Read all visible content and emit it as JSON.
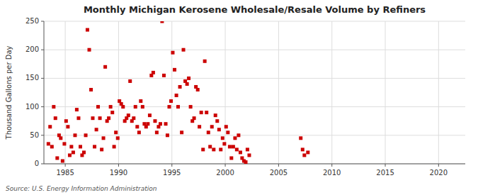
{
  "chart_data": {
    "type": "scatter",
    "title": "Monthly Michigan Kerosene Wholesale/Resale Volume by Refiners",
    "ylabel": "Thousand Gallons per Day",
    "annotations": [
      "Source: U.S. Energy Information Administration"
    ],
    "color": "#cc0000",
    "marker": "square",
    "grid": true,
    "xlim": [
      1983.0,
      2022.5
    ],
    "ylim": [
      0,
      250
    ],
    "xticks": [
      1985,
      1990,
      1995,
      2000,
      2005,
      2010,
      2015,
      2020
    ],
    "yticks": [
      0,
      50,
      100,
      150,
      200,
      250
    ],
    "x": [
      1983.42,
      1983.58,
      1983.75,
      1983.92,
      1984.08,
      1984.25,
      1984.42,
      1984.58,
      1984.75,
      1984.92,
      1985.08,
      1985.25,
      1985.42,
      1985.58,
      1985.75,
      1985.92,
      1986.08,
      1986.25,
      1986.42,
      1986.58,
      1986.75,
      1986.92,
      1987.08,
      1987.25,
      1987.42,
      1987.58,
      1987.75,
      1987.92,
      1988.08,
      1988.25,
      1988.42,
      1988.58,
      1988.75,
      1988.92,
      1989.08,
      1989.25,
      1989.42,
      1989.58,
      1989.75,
      1989.92,
      1990.08,
      1990.25,
      1990.42,
      1990.58,
      1990.75,
      1990.92,
      1991.08,
      1991.25,
      1991.42,
      1991.58,
      1991.75,
      1991.92,
      1992.08,
      1992.25,
      1992.42,
      1992.58,
      1992.75,
      1992.92,
      1993.08,
      1993.25,
      1993.42,
      1993.58,
      1993.75,
      1993.92,
      1994.08,
      1994.25,
      1994.42,
      1994.58,
      1994.75,
      1994.92,
      1995.08,
      1995.25,
      1995.42,
      1995.58,
      1995.75,
      1995.92,
      1996.08,
      1996.25,
      1996.42,
      1996.58,
      1996.75,
      1996.92,
      1997.08,
      1997.25,
      1997.42,
      1997.58,
      1997.75,
      1997.92,
      1998.08,
      1998.25,
      1998.42,
      1998.58,
      1998.75,
      1998.92,
      1999.08,
      1999.25,
      1999.42,
      1999.58,
      1999.75,
      1999.92,
      2000.08,
      2000.25,
      2000.42,
      2000.58,
      2000.75,
      2000.92,
      2001.08,
      2001.25,
      2001.42,
      2001.58,
      2001.75,
      2001.92,
      2002.08,
      2002.25,
      2007.08,
      2007.25,
      2007.42,
      2007.75
    ],
    "values": [
      35,
      65,
      30,
      100,
      80,
      10,
      50,
      45,
      5,
      35,
      75,
      65,
      15,
      30,
      20,
      50,
      95,
      80,
      30,
      15,
      20,
      50,
      235,
      200,
      130,
      80,
      30,
      60,
      100,
      80,
      25,
      45,
      170,
      75,
      80,
      100,
      90,
      30,
      55,
      45,
      110,
      105,
      100,
      75,
      80,
      85,
      145,
      75,
      80,
      100,
      65,
      55,
      110,
      100,
      70,
      65,
      70,
      85,
      155,
      160,
      75,
      55,
      65,
      70,
      250,
      155,
      70,
      50,
      100,
      110,
      195,
      165,
      120,
      100,
      135,
      55,
      200,
      145,
      140,
      150,
      100,
      75,
      80,
      135,
      130,
      65,
      90,
      25,
      180,
      90,
      55,
      30,
      65,
      25,
      85,
      75,
      60,
      25,
      45,
      35,
      65,
      55,
      30,
      10,
      30,
      45,
      25,
      50,
      20,
      10,
      5,
      3,
      25,
      15,
      45,
      25,
      15,
      20
    ]
  }
}
